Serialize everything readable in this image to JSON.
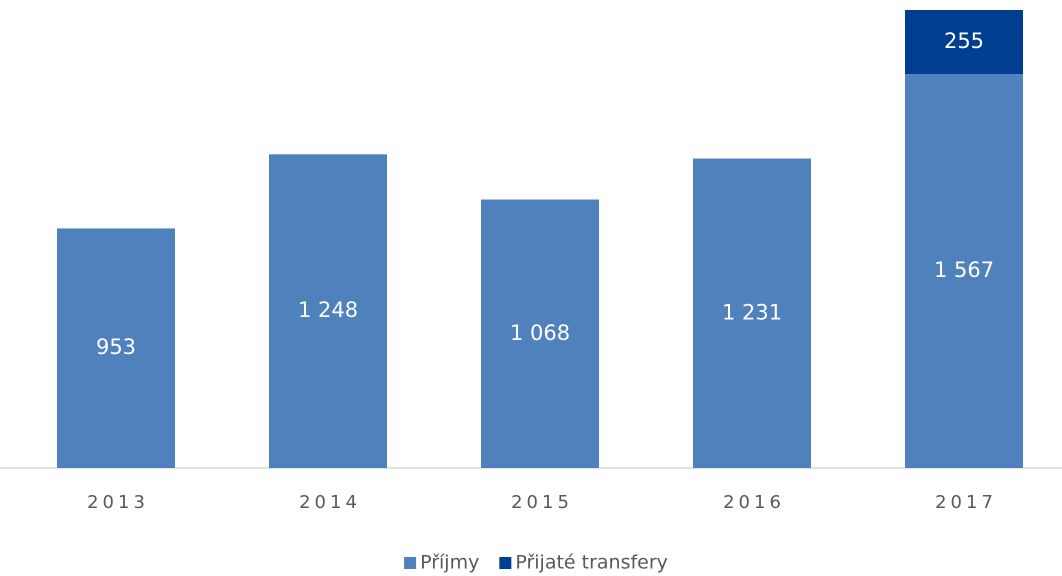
{
  "chart_data": {
    "type": "bar",
    "stacked": true,
    "categories": [
      "2013",
      "2014",
      "2015",
      "2016",
      "2017"
    ],
    "series": [
      {
        "name": "Příjmy",
        "color": "#4f81bd",
        "values": [
          953,
          1248,
          1068,
          1231,
          1567
        ],
        "value_labels": [
          "953",
          "1 248",
          "1 068",
          "1 231",
          "1 567"
        ]
      },
      {
        "name": "Přijaté transfery",
        "color": "#003e92",
        "values": [
          null,
          null,
          null,
          null,
          255
        ],
        "value_labels": [
          null,
          null,
          null,
          null,
          "255"
        ]
      }
    ]
  }
}
